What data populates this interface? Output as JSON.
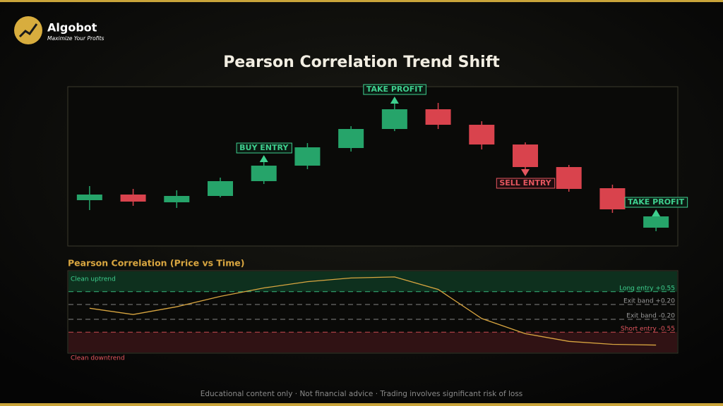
{
  "brand": {
    "name": "Algobot",
    "tagline": "Maximize Your Profits"
  },
  "footer": "Educational content only · Not financial advice · Trading involves significant risk of loss",
  "chart_data": [
    {
      "type": "candlestick",
      "title": "Pearson Correlation Trend Shift",
      "open": [
        65,
        73,
        62,
        71,
        92,
        114,
        139,
        166,
        194,
        172,
        144,
        112,
        82,
        26
      ],
      "high": [
        85,
        81,
        79,
        97,
        123,
        146,
        170,
        206,
        203,
        177,
        147,
        115,
        87,
        46
      ],
      "low": [
        51,
        57,
        54,
        69,
        88,
        109,
        134,
        163,
        166,
        137,
        107,
        77,
        47,
        21
      ],
      "close": [
        73,
        63,
        71,
        92,
        114,
        140,
        166,
        194,
        172,
        144,
        112,
        81,
        52,
        42
      ],
      "ylim": [
        0,
        226
      ],
      "up_color": "#26a46a",
      "down_color": "#d9434d",
      "annotations": [
        {
          "text": "BUY ENTRY",
          "index": 4,
          "position": "above",
          "color": "#3ecf8e"
        },
        {
          "text": "TAKE PROFIT",
          "index": 7,
          "position": "above",
          "color": "#3ecf8e"
        },
        {
          "text": "SELL ENTRY",
          "index": 10,
          "position": "below",
          "color": "#e5565f"
        },
        {
          "text": "TAKE PROFIT",
          "index": 13,
          "position": "above",
          "color": "#3ecf8e"
        }
      ]
    },
    {
      "type": "line",
      "title": "Pearson Correlation (Price vs Time)",
      "values": [
        0.1,
        -0.07,
        0.14,
        0.42,
        0.65,
        0.82,
        0.92,
        0.95,
        0.61,
        -0.18,
        -0.59,
        -0.8,
        -0.88,
        -0.9
      ],
      "color": "#d9a640",
      "ylim": [
        -1.1,
        1.1
      ],
      "yticks": [
        {
          "value": 0.55,
          "label": "Long entry +0.55"
        },
        {
          "value": 0.2,
          "label": "Exit band +0.20"
        },
        {
          "value": -0.2,
          "label": "Exit band -0.20"
        },
        {
          "value": -0.55,
          "label": "Short entry -0.55"
        }
      ],
      "tick_colors": [
        "#3ecf8e",
        "#9a9a9a",
        "#9a9a9a",
        "#e5565f"
      ],
      "zones": [
        {
          "label": "Clean uptrend",
          "from": 0.55,
          "to": 1.1,
          "color": "#0f3a24",
          "text_color": "#3ecf8e"
        },
        {
          "label": "Clean downtrend",
          "from": -1.1,
          "to": -0.55,
          "color": "#3a1418",
          "text_color": "#e5565f"
        }
      ]
    }
  ]
}
